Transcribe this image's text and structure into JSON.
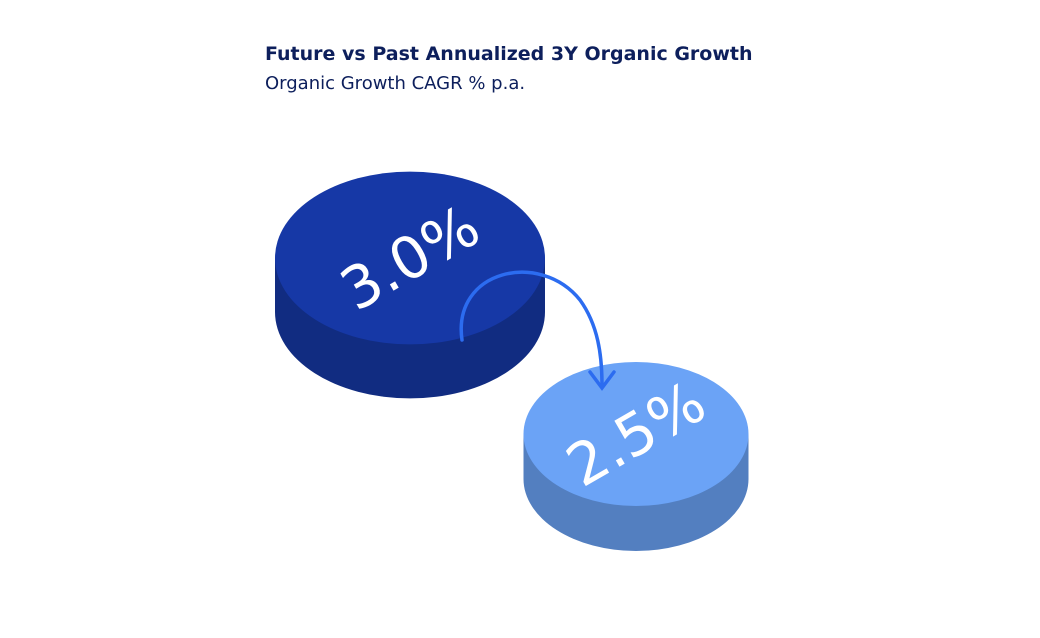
{
  "chart_data": {
    "type": "disc",
    "title": "Future vs Past Annualized 3Y Organic Growth",
    "subtitle": "Organic Growth CAGR % p.a.",
    "values": [
      3.0,
      2.5
    ],
    "value_labels": [
      "3.0%",
      "2.5%"
    ],
    "colors": [
      "#1638a6",
      "#6ba3f6"
    ]
  }
}
